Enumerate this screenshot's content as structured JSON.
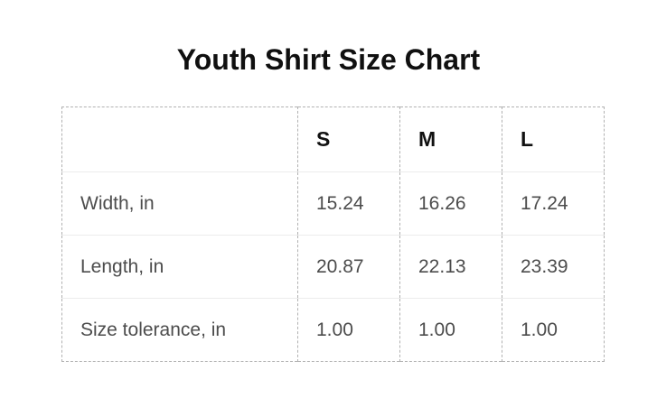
{
  "title": "Youth Shirt Size Chart",
  "table": {
    "columns": [
      "",
      "S",
      "M",
      "L"
    ],
    "rows": [
      {
        "label": "Width, in",
        "values": [
          "15.24",
          "16.26",
          "17.24"
        ]
      },
      {
        "label": "Length, in",
        "values": [
          "20.87",
          "22.13",
          "23.39"
        ]
      },
      {
        "label": "Size tolerance, in",
        "values": [
          "1.00",
          "1.00",
          "1.00"
        ]
      }
    ]
  },
  "colors": {
    "background": "#ffffff",
    "title_text": "#101010",
    "header_text": "#111111",
    "cell_text": "#4c4c4c",
    "dashed_border": "#b1b1b1",
    "row_separator": "#ececec"
  },
  "chart_data": {
    "type": "table",
    "title": "Youth Shirt Size Chart",
    "categories": [
      "S",
      "M",
      "L"
    ],
    "series": [
      {
        "name": "Width, in",
        "values": [
          15.24,
          16.26,
          17.24
        ]
      },
      {
        "name": "Length, in",
        "values": [
          20.87,
          22.13,
          23.39
        ]
      },
      {
        "name": "Size tolerance, in",
        "values": [
          1.0,
          1.0,
          1.0
        ]
      }
    ],
    "units": "in",
    "layout": "rows are measurements, columns are youth sizes S/M/L"
  }
}
